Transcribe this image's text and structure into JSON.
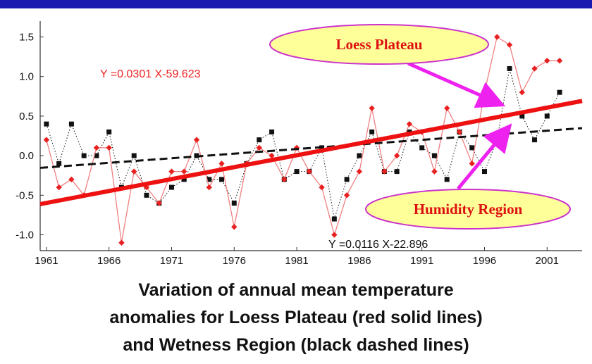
{
  "chart_data": {
    "type": "line",
    "x": [
      1961,
      1962,
      1963,
      1964,
      1965,
      1966,
      1967,
      1968,
      1969,
      1970,
      1971,
      1972,
      1973,
      1974,
      1975,
      1976,
      1977,
      1978,
      1979,
      1980,
      1981,
      1982,
      1983,
      1984,
      1985,
      1986,
      1987,
      1988,
      1989,
      1990,
      1991,
      1992,
      1993,
      1994,
      1995,
      1996,
      1997,
      1998,
      1999,
      2000,
      2001,
      2002
    ],
    "xticks": [
      "1961",
      "1966",
      "1971",
      "1976",
      "1981",
      "1986",
      "1991",
      "1996",
      "2001"
    ],
    "yticks": [
      "-1.0",
      "-0.5",
      "0.0",
      "0.5",
      "1.0",
      "1.5"
    ],
    "xlim": [
      1960.5,
      2003.8
    ],
    "ylim": [
      -1.2,
      1.7
    ],
    "grid": false,
    "series": [
      {
        "color": "#ee3333",
        "line_style": "solid thin with diamond markers",
        "values": [
          0.2,
          -0.4,
          -0.3,
          -0.5,
          0.1,
          0.1,
          -1.1,
          -0.2,
          -0.4,
          -0.6,
          -0.2,
          -0.2,
          0.2,
          -0.4,
          -0.1,
          -0.9,
          -0.1,
          0.1,
          0.0,
          -0.3,
          0.1,
          -0.2,
          -0.4,
          -1.0,
          -0.5,
          -0.2,
          0.6,
          -0.2,
          0.0,
          0.4,
          0.3,
          -0.2,
          0.6,
          0.3,
          -0.1,
          0.8,
          1.5,
          1.4,
          0.8,
          1.1,
          1.2,
          1.2
        ]
      },
      {
        "color": "#111111",
        "line_style": "dotted with square markers",
        "values": [
          0.4,
          -0.1,
          0.4,
          0.0,
          0.0,
          0.3,
          -0.4,
          0.0,
          -0.5,
          -0.6,
          -0.4,
          -0.3,
          0.0,
          -0.3,
          -0.3,
          -0.6,
          -0.1,
          0.2,
          0.3,
          -0.3,
          -0.2,
          -0.2,
          0.1,
          -0.8,
          -0.3,
          0.0,
          0.3,
          -0.2,
          -0.2,
          0.3,
          0.1,
          0.0,
          -0.3,
          0.3,
          0.1,
          -0.2,
          0.2,
          1.1,
          0.5,
          0.2,
          0.5,
          0.8
        ]
      }
    ],
    "trendlines": [
      {
        "label": "Y =0.0301 X-59.623",
        "slope": 0.0301,
        "intercept": -59.623,
        "color": "#ee1111",
        "style": "solid thick"
      },
      {
        "label": "Y =0.0116 X-22.896",
        "slope": 0.0116,
        "intercept": -22.896,
        "color": "#111111",
        "style": "dashed"
      }
    ],
    "annotations": [
      {
        "text": "Loess Plateau",
        "color": "#dd1111",
        "fill": "#ffff99",
        "border": "#cc33cc"
      },
      {
        "text": "Humidity Region",
        "color": "#dd1111",
        "fill": "#ffff99",
        "border": "#cc33cc"
      }
    ]
  },
  "caption": {
    "line1": "Variation of annual mean temperature",
    "line2": "anomalies  for Loess Plateau (red solid lines)",
    "line3": "and Wetness Region (black dashed lines)"
  },
  "colors": {
    "top_bar": "#1a1ab0",
    "arrow": "#ee22ee"
  }
}
